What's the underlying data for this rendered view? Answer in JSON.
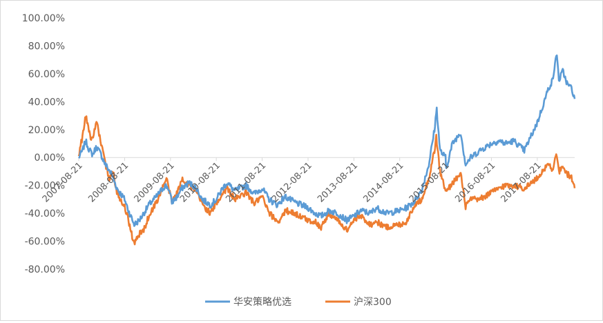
{
  "chart_data": {
    "type": "line",
    "title": "",
    "xlabel": "",
    "ylabel": "",
    "y_unit": "%",
    "ylim": [
      -80,
      100
    ],
    "y_ticks": [
      100,
      80,
      60,
      40,
      20,
      0,
      -20,
      -40,
      -60,
      -80
    ],
    "y_tick_labels": [
      "100.00%",
      "80.00%",
      "60.00%",
      "40.00%",
      "20.00%",
      "0.00%",
      "-20.00%",
      "-40.00%",
      "-60.00%",
      "-80.00%"
    ],
    "x_range": [
      "2007-08-21",
      "2018-06-15"
    ],
    "x_tick_labels": [
      "2007-08-21",
      "2008-08-21",
      "2009-08-21",
      "2010-08-21",
      "2011-08-21",
      "2012-08-21",
      "2013-08-21",
      "2014-08-21",
      "2015-08-21",
      "2016-08-21",
      "2017-08-21"
    ],
    "x_tick_rotation": -45,
    "grid": false,
    "legend_position": "bottom",
    "series": [
      {
        "name": "华安策略优选",
        "color": "#5b9bd5",
        "points": [
          [
            "2007-08-21",
            0
          ],
          [
            "2007-09-20",
            5
          ],
          [
            "2007-10-15",
            12
          ],
          [
            "2007-11-10",
            6
          ],
          [
            "2007-12-10",
            2
          ],
          [
            "2008-01-10",
            8
          ],
          [
            "2008-02-15",
            2
          ],
          [
            "2008-03-20",
            -5
          ],
          [
            "2008-05-10",
            -12
          ],
          [
            "2008-06-20",
            -22
          ],
          [
            "2008-08-21",
            -30
          ],
          [
            "2008-09-20",
            -38
          ],
          [
            "2008-11-05",
            -48
          ],
          [
            "2008-12-15",
            -45
          ],
          [
            "2009-01-20",
            -40
          ],
          [
            "2009-03-01",
            -34
          ],
          [
            "2009-05-01",
            -28
          ],
          [
            "2009-07-10",
            -20
          ],
          [
            "2009-08-05",
            -22
          ],
          [
            "2009-09-01",
            -32
          ],
          [
            "2009-10-15",
            -28
          ],
          [
            "2009-11-20",
            -22
          ],
          [
            "2010-01-15",
            -18
          ],
          [
            "2010-03-15",
            -22
          ],
          [
            "2010-05-01",
            -30
          ],
          [
            "2010-07-05",
            -34
          ],
          [
            "2010-08-21",
            -30
          ],
          [
            "2010-10-10",
            -22
          ],
          [
            "2010-11-15",
            -18
          ],
          [
            "2011-01-15",
            -24
          ],
          [
            "2011-04-15",
            -20
          ],
          [
            "2011-06-20",
            -26
          ],
          [
            "2011-08-21",
            -22
          ],
          [
            "2011-10-15",
            -30
          ],
          [
            "2011-12-20",
            -34
          ],
          [
            "2012-02-20",
            -28
          ],
          [
            "2012-05-05",
            -32
          ],
          [
            "2012-08-21",
            -36
          ],
          [
            "2012-10-15",
            -40
          ],
          [
            "2012-12-03",
            -42
          ],
          [
            "2013-02-05",
            -38
          ],
          [
            "2013-04-15",
            -40
          ],
          [
            "2013-06-25",
            -45
          ],
          [
            "2013-08-21",
            -42
          ],
          [
            "2013-10-15",
            -38
          ],
          [
            "2013-12-31",
            -40
          ],
          [
            "2014-02-15",
            -36
          ],
          [
            "2014-05-10",
            -40
          ],
          [
            "2014-08-21",
            -38
          ],
          [
            "2014-10-15",
            -36
          ],
          [
            "2014-12-10",
            -32
          ],
          [
            "2015-02-10",
            -24
          ],
          [
            "2015-04-10",
            -5
          ],
          [
            "2015-05-25",
            20
          ],
          [
            "2015-06-12",
            35
          ],
          [
            "2015-07-08",
            5
          ],
          [
            "2015-08-21",
            0
          ],
          [
            "2015-08-26",
            -8
          ],
          [
            "2015-10-15",
            10
          ],
          [
            "2015-12-20",
            18
          ],
          [
            "2016-01-28",
            -5
          ],
          [
            "2016-03-10",
            0
          ],
          [
            "2016-05-20",
            5
          ],
          [
            "2016-08-21",
            10
          ],
          [
            "2016-10-20",
            12
          ],
          [
            "2016-12-10",
            10
          ],
          [
            "2017-02-15",
            12
          ],
          [
            "2017-05-10",
            5
          ],
          [
            "2017-08-21",
            25
          ],
          [
            "2017-10-15",
            40
          ],
          [
            "2017-11-20",
            50
          ],
          [
            "2017-12-20",
            55
          ],
          [
            "2018-01-24",
            75
          ],
          [
            "2018-02-09",
            55
          ],
          [
            "2018-03-12",
            62
          ],
          [
            "2018-04-20",
            52
          ],
          [
            "2018-05-20",
            50
          ],
          [
            "2018-06-15",
            42
          ]
        ]
      },
      {
        "name": "沪深300",
        "color": "#ed7d31",
        "points": [
          [
            "2007-08-21",
            2
          ],
          [
            "2007-09-20",
            15
          ],
          [
            "2007-10-16",
            30
          ],
          [
            "2007-11-10",
            20
          ],
          [
            "2007-11-28",
            12
          ],
          [
            "2008-01-14",
            25
          ],
          [
            "2008-02-15",
            10
          ],
          [
            "2008-03-20",
            -5
          ],
          [
            "2008-04-20",
            -15
          ],
          [
            "2008-05-20",
            -10
          ],
          [
            "2008-06-20",
            -25
          ],
          [
            "2008-08-21",
            -35
          ],
          [
            "2008-09-20",
            -45
          ],
          [
            "2008-11-04",
            -62
          ],
          [
            "2008-12-15",
            -55
          ],
          [
            "2009-01-20",
            -52
          ],
          [
            "2009-03-01",
            -42
          ],
          [
            "2009-05-01",
            -32
          ],
          [
            "2009-07-20",
            -15
          ],
          [
            "2009-08-31",
            -32
          ],
          [
            "2009-10-15",
            -25
          ],
          [
            "2009-11-24",
            -15
          ],
          [
            "2010-01-15",
            -20
          ],
          [
            "2010-03-15",
            -25
          ],
          [
            "2010-05-15",
            -35
          ],
          [
            "2010-07-05",
            -40
          ],
          [
            "2010-08-21",
            -33
          ],
          [
            "2010-10-15",
            -25
          ],
          [
            "2010-11-15",
            -22
          ],
          [
            "2011-01-15",
            -30
          ],
          [
            "2011-04-15",
            -25
          ],
          [
            "2011-06-20",
            -33
          ],
          [
            "2011-08-21",
            -28
          ],
          [
            "2011-10-15",
            -40
          ],
          [
            "2011-12-28",
            -46
          ],
          [
            "2012-02-28",
            -38
          ],
          [
            "2012-05-05",
            -40
          ],
          [
            "2012-08-21",
            -45
          ],
          [
            "2012-10-15",
            -46
          ],
          [
            "2012-12-03",
            -50
          ],
          [
            "2013-02-05",
            -40
          ],
          [
            "2013-04-15",
            -45
          ],
          [
            "2013-06-25",
            -52
          ],
          [
            "2013-08-21",
            -45
          ],
          [
            "2013-10-15",
            -42
          ],
          [
            "2013-12-31",
            -48
          ],
          [
            "2014-02-15",
            -46
          ],
          [
            "2014-05-10",
            -50
          ],
          [
            "2014-08-21",
            -48
          ],
          [
            "2014-10-15",
            -46
          ],
          [
            "2014-12-10",
            -35
          ],
          [
            "2015-02-10",
            -30
          ],
          [
            "2015-04-10",
            -15
          ],
          [
            "2015-05-25",
            5
          ],
          [
            "2015-06-08",
            15
          ],
          [
            "2015-07-08",
            -10
          ],
          [
            "2015-08-26",
            -25
          ],
          [
            "2015-10-15",
            -18
          ],
          [
            "2015-12-20",
            -12
          ],
          [
            "2016-01-28",
            -35
          ],
          [
            "2016-03-10",
            -30
          ],
          [
            "2016-05-20",
            -30
          ],
          [
            "2016-08-21",
            -25
          ],
          [
            "2016-10-20",
            -22
          ],
          [
            "2016-12-10",
            -20
          ],
          [
            "2017-02-15",
            -20
          ],
          [
            "2017-05-10",
            -22
          ],
          [
            "2017-08-21",
            -15
          ],
          [
            "2017-10-15",
            -8
          ],
          [
            "2017-11-20",
            -5
          ],
          [
            "2017-12-20",
            -8
          ],
          [
            "2018-01-24",
            2
          ],
          [
            "2018-02-09",
            -10
          ],
          [
            "2018-03-12",
            -8
          ],
          [
            "2018-04-20",
            -12
          ],
          [
            "2018-05-20",
            -14
          ],
          [
            "2018-06-15",
            -22
          ]
        ]
      }
    ]
  }
}
